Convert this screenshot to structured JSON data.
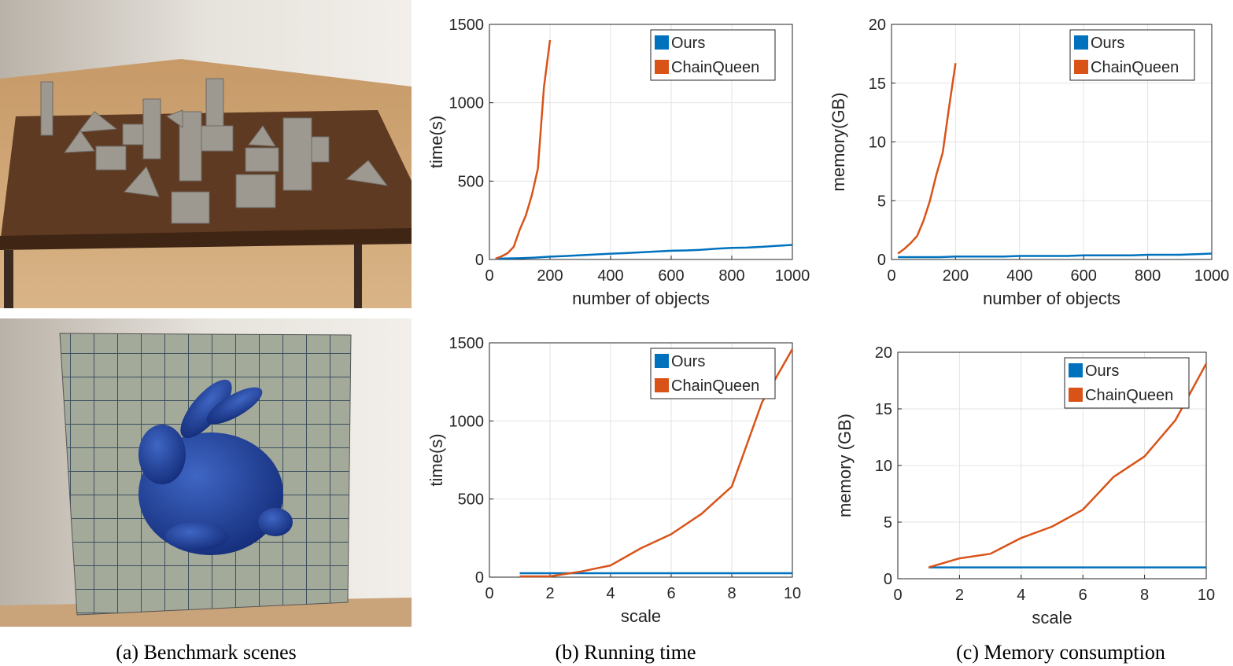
{
  "captions": [
    "(a) Benchmark scenes",
    "(b) Running time",
    "(c) Memory consumption"
  ],
  "chart_data": [
    {
      "type": "line",
      "xlabel": "number of objects",
      "ylabel": "time(s)",
      "grid": true,
      "legend": "upper right",
      "xlim": [
        0,
        1000
      ],
      "xticks": [
        0,
        200,
        400,
        600,
        800,
        1000
      ],
      "ylim": [
        0,
        1500
      ],
      "yticks": [
        0,
        500,
        1000,
        1500
      ],
      "series": [
        {
          "name": "Ours",
          "color": "#0072bd",
          "x": [
            20,
            50,
            100,
            150,
            200,
            250,
            300,
            350,
            400,
            450,
            500,
            550,
            600,
            650,
            700,
            750,
            800,
            850,
            900,
            950,
            1000
          ],
          "values": [
            5,
            6,
            8,
            12,
            18,
            22,
            27,
            32,
            37,
            41,
            46,
            51,
            56,
            58,
            62,
            69,
            74,
            76,
            81,
            87,
            93
          ]
        },
        {
          "name": "ChainQueen",
          "color": "#d95319",
          "x": [
            20,
            40,
            60,
            80,
            100,
            120,
            140,
            160,
            180,
            200
          ],
          "values": [
            5,
            20,
            40,
            80,
            190,
            280,
            410,
            580,
            1100,
            1400
          ]
        }
      ]
    },
    {
      "type": "line",
      "xlabel": "number of objects",
      "ylabel": "memory(GB)",
      "grid": true,
      "legend": "upper right",
      "xlim": [
        0,
        1000
      ],
      "xticks": [
        0,
        200,
        400,
        600,
        800,
        1000
      ],
      "ylim": [
        0,
        20
      ],
      "yticks": [
        0,
        5,
        10,
        15,
        20
      ],
      "series": [
        {
          "name": "Ours",
          "color": "#0072bd",
          "x": [
            20,
            50,
            100,
            150,
            200,
            250,
            300,
            350,
            400,
            450,
            500,
            550,
            600,
            650,
            700,
            750,
            800,
            850,
            900,
            950,
            1000
          ],
          "values": [
            0.2,
            0.2,
            0.2,
            0.2,
            0.25,
            0.25,
            0.25,
            0.25,
            0.3,
            0.3,
            0.3,
            0.3,
            0.35,
            0.35,
            0.35,
            0.35,
            0.4,
            0.4,
            0.4,
            0.45,
            0.5
          ]
        },
        {
          "name": "ChainQueen",
          "color": "#d95319",
          "x": [
            20,
            40,
            60,
            80,
            100,
            120,
            140,
            160,
            180,
            200
          ],
          "values": [
            0.5,
            0.9,
            1.4,
            2.0,
            3.3,
            5.0,
            7.2,
            9.1,
            13.0,
            16.7
          ]
        }
      ]
    },
    {
      "type": "line",
      "xlabel": "scale",
      "ylabel": "time(s)",
      "grid": true,
      "legend": "upper right",
      "xlim": [
        0,
        10
      ],
      "xticks": [
        0,
        2,
        4,
        6,
        8,
        10
      ],
      "ylim": [
        0,
        1500
      ],
      "yticks": [
        0,
        500,
        1000,
        1500
      ],
      "series": [
        {
          "name": "Ours",
          "color": "#0072bd",
          "x": [
            1,
            2,
            3,
            4,
            5,
            6,
            7,
            8,
            9,
            10
          ],
          "values": [
            25,
            25,
            25,
            25,
            25,
            25,
            25,
            25,
            25,
            25
          ]
        },
        {
          "name": "ChainQueen",
          "color": "#d95319",
          "x": [
            1,
            2,
            3,
            4,
            5,
            6,
            7,
            8,
            9,
            10
          ],
          "values": [
            5,
            5,
            35,
            75,
            185,
            275,
            405,
            580,
            1120,
            1460
          ]
        }
      ]
    },
    {
      "type": "line",
      "xlabel": "scale",
      "ylabel": "memory (GB)",
      "grid": true,
      "legend": "upper right",
      "xlim": [
        0,
        10
      ],
      "xticks": [
        0,
        2,
        4,
        6,
        8,
        10
      ],
      "ylim": [
        0,
        20
      ],
      "yticks": [
        0,
        5,
        10,
        15,
        20
      ],
      "series": [
        {
          "name": "Ours",
          "color": "#0072bd",
          "x": [
            1,
            2,
            3,
            4,
            5,
            6,
            7,
            8,
            9,
            10
          ],
          "values": [
            1,
            1,
            1,
            1,
            1,
            1,
            1,
            1,
            1,
            1
          ]
        },
        {
          "name": "ChainQueen",
          "color": "#d95319",
          "x": [
            1,
            2,
            3,
            4,
            5,
            6,
            7,
            8,
            9,
            10
          ],
          "values": [
            1.0,
            1.8,
            2.2,
            3.6,
            4.6,
            6.1,
            9.0,
            10.8,
            14.0,
            19.0
          ]
        }
      ]
    }
  ]
}
